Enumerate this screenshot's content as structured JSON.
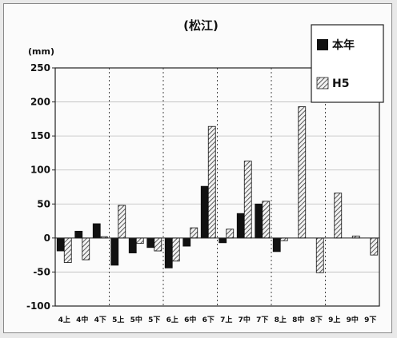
{
  "chart_data": {
    "type": "bar",
    "title": "(松江)",
    "ylabel": "(mm)",
    "xlabel": "",
    "ylim": [
      -100,
      250
    ],
    "yticks": [
      250,
      200,
      150,
      100,
      50,
      0,
      -50,
      -100
    ],
    "grid": "horizontal lines at ticks, dashed vertical separators between months",
    "legend_position": "top-right",
    "categories": [
      "4上",
      "4中",
      "4下",
      "5上",
      "5中",
      "5下",
      "6上",
      "6中",
      "6下",
      "7上",
      "7中",
      "7下",
      "8上",
      "8中",
      "8下",
      "9上",
      "9中",
      "9下"
    ],
    "series": [
      {
        "name": "本年",
        "color": "#111111",
        "pattern": "solid",
        "values": [
          -19,
          10,
          21,
          -40,
          -22,
          -14,
          -44,
          -12,
          76,
          -7,
          36,
          50,
          -20,
          0,
          0,
          0,
          0,
          0
        ]
      },
      {
        "name": "H5",
        "color": "#555555",
        "pattern": "hatched",
        "values": [
          -36,
          -32,
          2,
          48,
          -8,
          -19,
          -34,
          15,
          164,
          13,
          113,
          54,
          -4,
          193,
          -51,
          66,
          3,
          -25
        ]
      }
    ]
  }
}
